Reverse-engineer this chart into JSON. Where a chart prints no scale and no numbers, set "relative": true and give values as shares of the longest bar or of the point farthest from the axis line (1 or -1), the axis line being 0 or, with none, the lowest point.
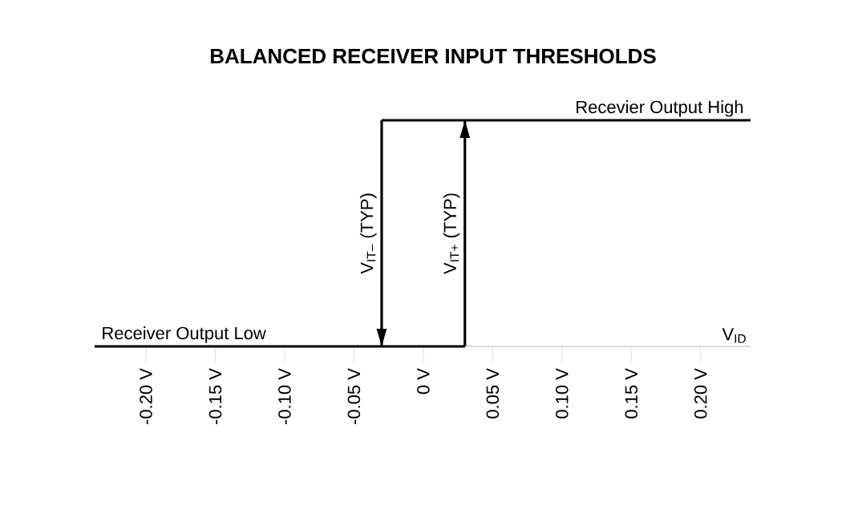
{
  "chart_data": {
    "type": "line",
    "title": "BALANCED RECEIVER INPUT THRESHOLDS",
    "xlabel": "V$_{ID}$",
    "relative": true,
    "xlim": [
      -0.237,
      0.236
    ],
    "xticks": [
      {
        "value": -0.2,
        "label": "-0.20 V"
      },
      {
        "value": -0.15,
        "label": "-0.15 V"
      },
      {
        "value": -0.1,
        "label": "-0.10 V"
      },
      {
        "value": -0.05,
        "label": "-0.05 V"
      },
      {
        "value": 0,
        "label": "0 V"
      },
      {
        "value": 0.05,
        "label": "0.05 V"
      },
      {
        "value": 0.1,
        "label": "0.10 V"
      },
      {
        "value": 0.15,
        "label": "0.15 V"
      },
      {
        "value": 0.2,
        "label": "0.20 V"
      }
    ],
    "series": [
      {
        "color": "#000000",
        "x": [
          -0.237,
          0.03
        ],
        "values": [
          0,
          0
        ]
      },
      {
        "color": "#000000",
        "x": [
          0.03,
          0.03
        ],
        "values": [
          0,
          1
        ]
      },
      {
        "color": "#000000",
        "x": [
          -0.03,
          0.236
        ],
        "values": [
          1,
          1
        ]
      },
      {
        "color": "#000000",
        "x": [
          -0.03,
          -0.03
        ],
        "values": [
          1,
          0
        ]
      }
    ],
    "annotations": [
      {
        "text": "Receiver Output Low",
        "x": -0.237,
        "y": 0
      },
      {
        "text": "Recevier Output High",
        "x": 0.236,
        "y": 1
      },
      {
        "text": "V$_{IT–}$ (TYP)",
        "x": -0.03,
        "y": 0.5
      },
      {
        "text": "V$_{IT+}$ (TYP)",
        "x": 0.03,
        "y": 0.5
      }
    ],
    "grid": false
  }
}
